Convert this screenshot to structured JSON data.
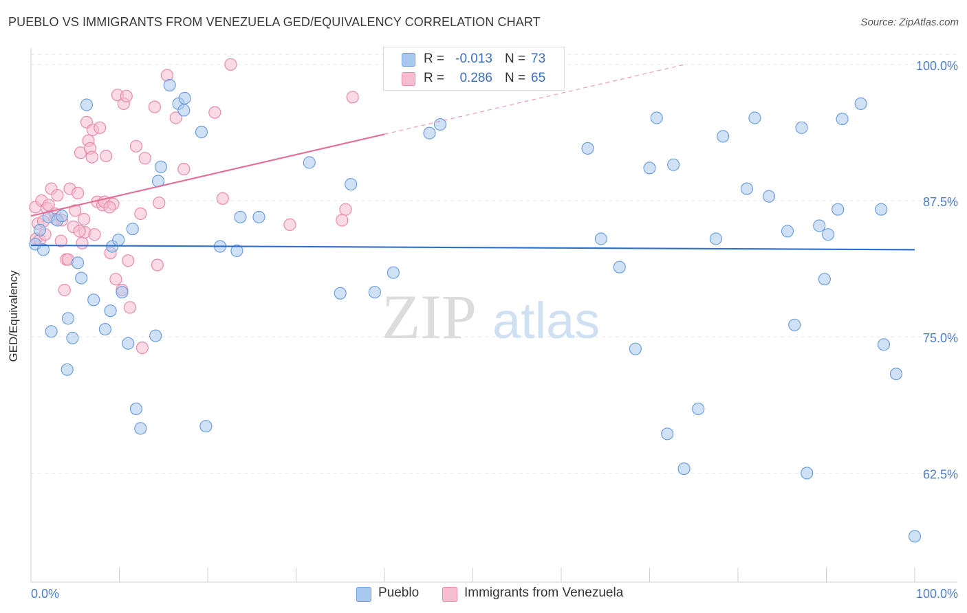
{
  "header": {
    "title": "PUEBLO VS IMMIGRANTS FROM VENEZUELA GED/EQUIVALENCY CORRELATION CHART",
    "source": "Source: ZipAtlas.com"
  },
  "watermark": {
    "zip": "ZIP",
    "atlas": "atlas"
  },
  "legend_top": {
    "rows": [
      {
        "r_label": "R =",
        "r_value": "-0.013",
        "n_label": "N =",
        "n_value": "73"
      },
      {
        "r_label": "R =",
        "r_value": "0.286",
        "n_label": "N =",
        "n_value": "65"
      }
    ]
  },
  "colors": {
    "pueblo_fill": "#a9c8ef",
    "pueblo_stroke": "#6d9fde",
    "pueblo_line": "#2d6fd0",
    "venezuela_fill": "#f6bcd0",
    "venezuela_stroke": "#e98aaa",
    "venezuela_line": "#e4709a",
    "tick_text": "#4a7cc7"
  },
  "chart_data": {
    "type": "scatter",
    "title": "PUEBLO VS IMMIGRANTS FROM VENEZUELA GED/EQUIVALENCY CORRELATION CHART",
    "xlabel": "",
    "ylabel": "GED/Equivalency",
    "xlim": [
      0,
      100
    ],
    "ylim": [
      52.5,
      101.5
    ],
    "x_tick_labels": [
      "0.0%",
      "100.0%"
    ],
    "y_ticks": [
      {
        "value": 62.5,
        "label": "62.5%"
      },
      {
        "value": 75.0,
        "label": "75.0%"
      },
      {
        "value": 87.5,
        "label": "87.5%"
      },
      {
        "value": 100.0,
        "label": "100.0%"
      }
    ],
    "grid": true,
    "legend_position": "bottom",
    "series": [
      {
        "name": "Pueblo",
        "marker_color": "#a9c8ef",
        "points": [
          [
            0.5,
            83.5
          ],
          [
            1.0,
            84.8
          ],
          [
            1.4,
            83.0
          ],
          [
            2.3,
            75.5
          ],
          [
            2.0,
            86.0
          ],
          [
            3.0,
            85.7
          ],
          [
            3.5,
            86.1
          ],
          [
            4.1,
            72.0
          ],
          [
            4.2,
            76.7
          ],
          [
            4.7,
            74.9
          ],
          [
            5.3,
            81.8
          ],
          [
            5.7,
            80.4
          ],
          [
            6.3,
            96.3
          ],
          [
            7.1,
            78.4
          ],
          [
            8.4,
            75.7
          ],
          [
            9.0,
            77.4
          ],
          [
            9.2,
            83.3
          ],
          [
            9.9,
            83.9
          ],
          [
            10.3,
            79.1
          ],
          [
            11.0,
            74.4
          ],
          [
            11.5,
            84.9
          ],
          [
            11.9,
            68.4
          ],
          [
            12.4,
            66.6
          ],
          [
            14.1,
            75.1
          ],
          [
            14.4,
            89.3
          ],
          [
            14.7,
            90.6
          ],
          [
            15.7,
            98.1
          ],
          [
            16.7,
            96.4
          ],
          [
            17.4,
            96.9
          ],
          [
            17.3,
            95.8
          ],
          [
            19.3,
            93.8
          ],
          [
            19.8,
            66.8
          ],
          [
            21.4,
            83.3
          ],
          [
            23.3,
            82.9
          ],
          [
            23.7,
            86.0
          ],
          [
            25.8,
            86.0
          ],
          [
            31.5,
            91.0
          ],
          [
            35.0,
            79.0
          ],
          [
            36.2,
            89.0
          ],
          [
            38.9,
            79.1
          ],
          [
            41.0,
            80.9
          ],
          [
            42.0,
            100.0
          ],
          [
            45.1,
            93.7
          ],
          [
            46.3,
            94.5
          ],
          [
            63.0,
            92.3
          ],
          [
            64.5,
            84.0
          ],
          [
            66.6,
            81.4
          ],
          [
            68.4,
            73.9
          ],
          [
            70.0,
            90.5
          ],
          [
            70.8,
            95.1
          ],
          [
            72.0,
            66.1
          ],
          [
            72.7,
            90.8
          ],
          [
            73.9,
            62.9
          ],
          [
            75.5,
            68.4
          ],
          [
            77.5,
            84.0
          ],
          [
            78.3,
            93.4
          ],
          [
            81.0,
            88.6
          ],
          [
            81.9,
            95.1
          ],
          [
            83.5,
            87.9
          ],
          [
            85.6,
            84.7
          ],
          [
            86.4,
            76.1
          ],
          [
            87.2,
            94.2
          ],
          [
            87.8,
            62.5
          ],
          [
            89.2,
            85.2
          ],
          [
            89.8,
            80.3
          ],
          [
            90.2,
            84.4
          ],
          [
            91.3,
            86.7
          ],
          [
            91.8,
            95.0
          ],
          [
            93.9,
            96.4
          ],
          [
            96.2,
            86.7
          ],
          [
            96.5,
            74.3
          ],
          [
            97.9,
            71.6
          ],
          [
            100.0,
            56.7
          ]
        ],
        "trend": {
          "x": [
            0,
            100
          ],
          "y": [
            83.4,
            83.0
          ]
        }
      },
      {
        "name": "Immigrants from Venezuela",
        "marker_color": "#f6bcd0",
        "points": [
          [
            0.5,
            86.9
          ],
          [
            0.6,
            84.0
          ],
          [
            0.8,
            85.4
          ],
          [
            1.0,
            83.9
          ],
          [
            1.2,
            87.5
          ],
          [
            1.4,
            85.6
          ],
          [
            1.6,
            84.4
          ],
          [
            1.8,
            86.8
          ],
          [
            2.0,
            87.1
          ],
          [
            2.3,
            88.6
          ],
          [
            2.7,
            86.3
          ],
          [
            3.0,
            88.0
          ],
          [
            3.4,
            83.8
          ],
          [
            3.5,
            85.7
          ],
          [
            3.8,
            79.3
          ],
          [
            4.0,
            82.1
          ],
          [
            4.2,
            82.1
          ],
          [
            4.4,
            88.6
          ],
          [
            4.8,
            85.1
          ],
          [
            5.0,
            86.6
          ],
          [
            5.3,
            88.2
          ],
          [
            5.6,
            91.9
          ],
          [
            5.8,
            83.6
          ],
          [
            6.0,
            85.8
          ],
          [
            6.1,
            84.6
          ],
          [
            6.3,
            94.7
          ],
          [
            6.5,
            93.0
          ],
          [
            6.7,
            92.3
          ],
          [
            6.9,
            91.5
          ],
          [
            7.0,
            94.0
          ],
          [
            7.2,
            84.4
          ],
          [
            7.5,
            87.4
          ],
          [
            7.8,
            94.2
          ],
          [
            8.1,
            87.1
          ],
          [
            8.3,
            87.4
          ],
          [
            8.5,
            91.6
          ],
          [
            9.0,
            82.7
          ],
          [
            9.3,
            87.2
          ],
          [
            9.6,
            80.3
          ],
          [
            9.8,
            97.2
          ],
          [
            10.3,
            79.3
          ],
          [
            10.5,
            96.4
          ],
          [
            10.8,
            97.1
          ],
          [
            11.0,
            82.0
          ],
          [
            11.2,
            77.7
          ],
          [
            11.9,
            92.5
          ],
          [
            12.4,
            86.3
          ],
          [
            12.6,
            74.0
          ],
          [
            12.9,
            91.4
          ],
          [
            14.0,
            96.1
          ],
          [
            14.3,
            81.6
          ],
          [
            14.5,
            87.3
          ],
          [
            15.4,
            99.0
          ],
          [
            16.4,
            95.1
          ],
          [
            17.3,
            90.4
          ],
          [
            20.8,
            95.6
          ],
          [
            21.7,
            87.7
          ],
          [
            22.6,
            100.0
          ],
          [
            29.3,
            85.3
          ],
          [
            35.2,
            85.7
          ],
          [
            35.6,
            86.7
          ],
          [
            36.4,
            97.0
          ],
          [
            2.8,
            85.8
          ],
          [
            5.5,
            84.7
          ],
          [
            8.9,
            86.9
          ]
        ],
        "trend": {
          "x": [
            0,
            40
          ],
          "y": [
            86.1,
            93.6
          ]
        },
        "trend_dashed": {
          "x": [
            40,
            74
          ],
          "y": [
            93.6,
            100.0
          ]
        }
      }
    ]
  },
  "legend_bottom": {
    "items": [
      {
        "label": "Pueblo"
      },
      {
        "label": "Immigrants from Venezuela"
      }
    ]
  }
}
